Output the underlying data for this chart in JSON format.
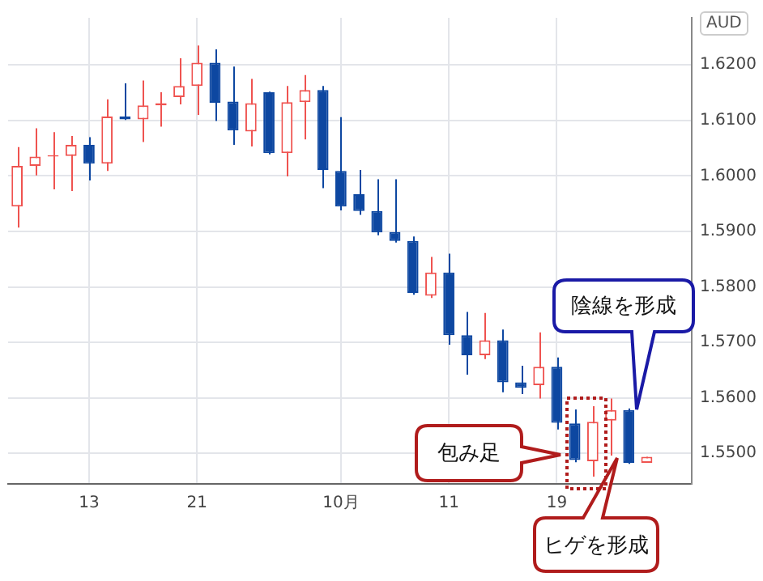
{
  "chart_data": {
    "type": "candlestick",
    "ylabel": "AUD",
    "categories": [
      null,
      null,
      null,
      null,
      "13",
      null,
      null,
      null,
      null,
      null,
      "21",
      null,
      null,
      null,
      null,
      null,
      null,
      null,
      "10月",
      null,
      null,
      null,
      null,
      null,
      "11",
      null,
      null,
      null,
      null,
      null,
      "19",
      null,
      null,
      null,
      null,
      null,
      null,
      null
    ],
    "ohlc": [
      [
        1.5945,
        1.6052,
        1.5907,
        1.6018
      ],
      [
        1.6018,
        1.6086,
        1.6001,
        1.6035
      ],
      [
        1.6035,
        1.6079,
        1.5976,
        1.6037
      ],
      [
        1.6036,
        1.6072,
        1.5973,
        1.6056
      ],
      [
        1.6056,
        1.607,
        1.5992,
        1.6022
      ],
      [
        1.6022,
        1.6138,
        1.6009,
        1.6107
      ],
      [
        1.6107,
        1.6167,
        1.6101,
        1.6102
      ],
      [
        1.6102,
        1.6172,
        1.6061,
        1.6127
      ],
      [
        1.6127,
        1.6151,
        1.6089,
        1.6131
      ],
      [
        1.6142,
        1.6212,
        1.6129,
        1.6162
      ],
      [
        1.6162,
        1.6235,
        1.611,
        1.6204
      ],
      [
        1.6204,
        1.6228,
        1.6099,
        1.6132
      ],
      [
        1.6134,
        1.6197,
        1.6056,
        1.6082
      ],
      [
        1.608,
        1.6175,
        1.6053,
        1.6131
      ],
      [
        1.6151,
        1.6152,
        1.6039,
        1.6041
      ],
      [
        1.6041,
        1.6162,
        1.5999,
        1.6133
      ],
      [
        1.6133,
        1.6182,
        1.6066,
        1.6155
      ],
      [
        1.6155,
        1.6162,
        1.5978,
        1.6011
      ],
      [
        1.6009,
        1.6106,
        1.5938,
        1.5945
      ],
      [
        1.5967,
        1.6011,
        1.593,
        1.5937
      ],
      [
        1.5937,
        1.5994,
        1.5893,
        1.5898
      ],
      [
        1.5899,
        1.5994,
        1.588,
        1.5883
      ],
      [
        1.5883,
        1.5891,
        1.5786,
        1.5789
      ],
      [
        1.5784,
        1.5854,
        1.578,
        1.5826
      ],
      [
        1.5826,
        1.586,
        1.5696,
        1.5713
      ],
      [
        1.5713,
        1.5755,
        1.5642,
        1.5677
      ],
      [
        1.5677,
        1.5753,
        1.567,
        1.5704
      ],
      [
        1.5704,
        1.5723,
        1.561,
        1.5628
      ],
      [
        1.5628,
        1.5658,
        1.5607,
        1.5618
      ],
      [
        1.5623,
        1.5718,
        1.5599,
        1.5656
      ],
      [
        1.5656,
        1.5673,
        1.5543,
        1.5555
      ],
      [
        1.5554,
        1.5579,
        1.5484,
        1.5488
      ],
      [
        1.5486,
        1.5585,
        1.5458,
        1.5557
      ],
      [
        1.5559,
        1.5599,
        1.5496,
        1.5578
      ],
      [
        1.5578,
        1.5581,
        1.5481,
        1.5483
      ],
      [
        1.5483,
        1.5494,
        1.5483,
        1.5494
      ],
      null,
      null
    ],
    "colors": [
      "#ef5350",
      "#ef5350",
      "#ef5350",
      "#ef5350",
      "#0d47a1",
      "#ef5350",
      "#0d47a1",
      "#ef5350",
      "#ef5350",
      "#ef5350",
      "#ef5350",
      "#0d47a1",
      "#0d47a1",
      "#ef5350",
      "#0d47a1",
      "#ef5350",
      "#ef5350",
      "#0d47a1",
      "#0d47a1",
      "#0d47a1",
      "#0d47a1",
      "#0d47a1",
      "#0d47a1",
      "#ef5350",
      "#0d47a1",
      "#0d47a1",
      "#ef5350",
      "#0d47a1",
      "#0d47a1",
      "#ef5350",
      "#0d47a1",
      "#0d47a1",
      "#ef5350",
      "#ef5350",
      "#0d47a1",
      "#ef5350",
      null,
      null
    ],
    "ylim": [
      1.5445,
      1.6285
    ],
    "yticks": [
      {
        "value": 1.55,
        "label": "1.5500"
      },
      {
        "value": 1.56,
        "label": "1.5600"
      },
      {
        "value": 1.57,
        "label": "1.5700"
      },
      {
        "value": 1.58,
        "label": "1.5800"
      },
      {
        "value": 1.59,
        "label": "1.5900"
      },
      {
        "value": 1.6,
        "label": "1.6000"
      },
      {
        "value": 1.61,
        "label": "1.6100"
      },
      {
        "value": 1.62,
        "label": "1.6200"
      }
    ],
    "grid": true,
    "legend": false,
    "annotations": [
      "陰線を形成",
      "包み足",
      "ヒゲを形成"
    ]
  }
}
